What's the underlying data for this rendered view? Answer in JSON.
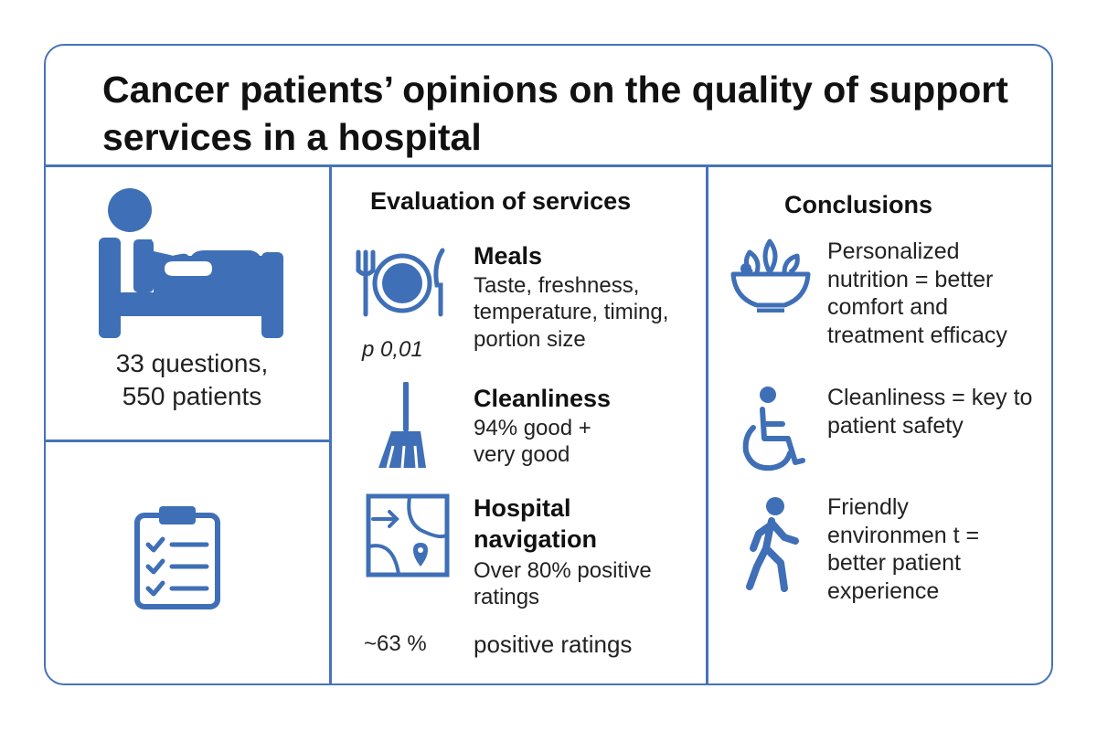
{
  "title": "Cancer patients’ opinions on the quality of support services in a hospital",
  "left": {
    "stats_line1": "33 questions,",
    "stats_line2": "550 patients",
    "icons": [
      "patient-bed-icon",
      "clipboard-checklist-icon"
    ]
  },
  "middle": {
    "heading": "Evaluation of services",
    "items": [
      {
        "icon": "plate-cutlery-icon",
        "title": "Meals",
        "text": "Taste, freshness, temperature, timing, portion size",
        "note": "p 0,01"
      },
      {
        "icon": "broom-icon",
        "title": "Cleanliness",
        "text": "94% good + very good"
      },
      {
        "icon": "map-pin-icon",
        "title": "Hospital navigation",
        "text": "Over 80% positive ratings"
      }
    ],
    "footer_value": "~63 %",
    "footer_text": "positive ratings"
  },
  "right": {
    "heading": "Conclusions",
    "items": [
      {
        "icon": "salad-bowl-icon",
        "text": "Personalized nutrition = better comfort and treatment efficacy"
      },
      {
        "icon": "wheelchair-icon",
        "text": "Cleanliness = key to patient safety"
      },
      {
        "icon": "walking-person-icon",
        "text": "Friendly environmen t = better patient experience"
      }
    ]
  },
  "colors": {
    "accent": "#4773b8",
    "icon": "#3f6fb6"
  }
}
